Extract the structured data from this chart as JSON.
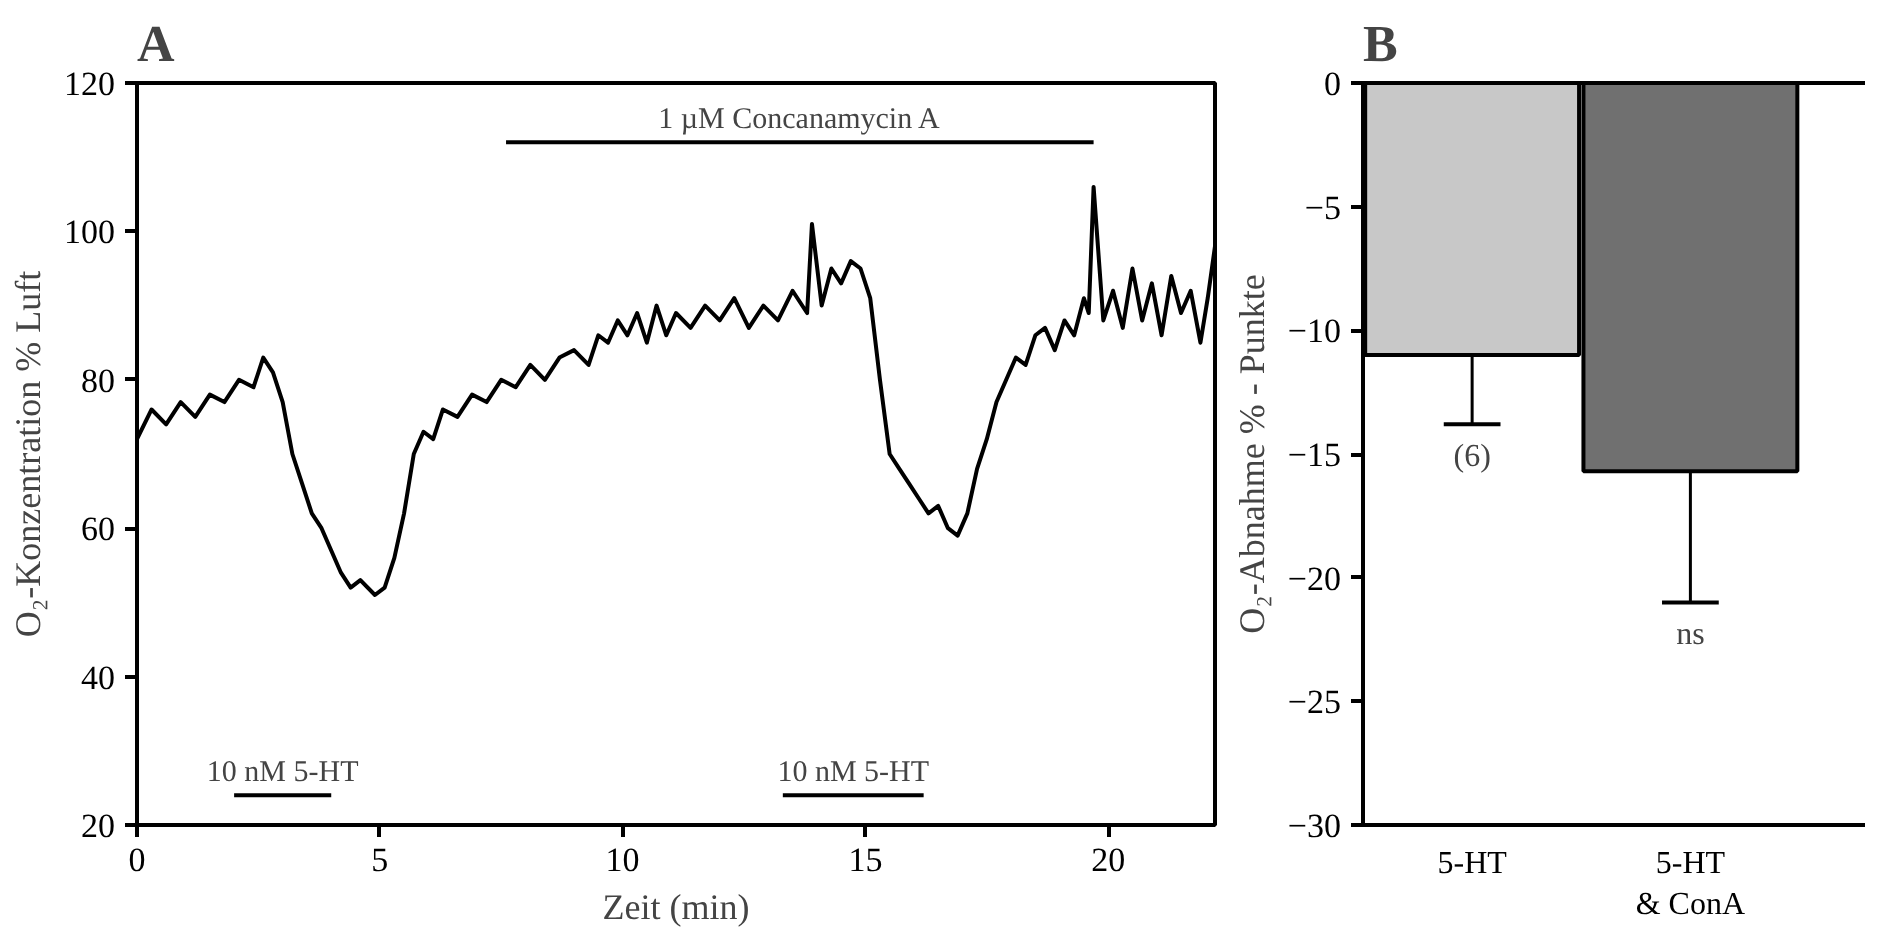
{
  "chart_data": [
    {
      "type": "line",
      "title": "A",
      "xlabel": "Zeit (min)",
      "ylabel": "O₂-Konzentration % Luft",
      "x": [
        0,
        0.3,
        0.6,
        0.9,
        1.2,
        1.5,
        1.8,
        2.1,
        2.4,
        2.6,
        2.8,
        3.0,
        3.2,
        3.4,
        3.6,
        3.8,
        4.0,
        4.2,
        4.4,
        4.6,
        4.9,
        5.1,
        5.3,
        5.5,
        5.7,
        5.9,
        6.1,
        6.3,
        6.6,
        6.9,
        7.2,
        7.5,
        7.8,
        8.1,
        8.4,
        8.7,
        9.0,
        9.3,
        9.5,
        9.7,
        9.9,
        10.1,
        10.3,
        10.5,
        10.7,
        10.9,
        11.1,
        11.4,
        11.7,
        12.0,
        12.3,
        12.6,
        12.9,
        13.2,
        13.5,
        13.8,
        13.9,
        14.1,
        14.3,
        14.5,
        14.7,
        14.9,
        15.1,
        15.3,
        15.5,
        15.7,
        15.9,
        16.1,
        16.3,
        16.5,
        16.7,
        16.9,
        17.1,
        17.3,
        17.5,
        17.7,
        17.9,
        18.1,
        18.3,
        18.5,
        18.7,
        18.9,
        19.1,
        19.3,
        19.5,
        19.6,
        19.7,
        19.9,
        20.1,
        20.3,
        20.5,
        20.7,
        20.9,
        21.1,
        21.3,
        21.5,
        21.7,
        21.9,
        22.05,
        22.2
      ],
      "series": [
        {
          "color": "#000000",
          "values": [
            72,
            76,
            74,
            77,
            75,
            78,
            77,
            80,
            79,
            83,
            81,
            77,
            70,
            66,
            62,
            60,
            57,
            54,
            52,
            53,
            51,
            52,
            56,
            62,
            70,
            73,
            72,
            76,
            75,
            78,
            77,
            80,
            79,
            82,
            80,
            83,
            84,
            82,
            86,
            85,
            88,
            86,
            89,
            85,
            90,
            86,
            89,
            87,
            90,
            88,
            91,
            87,
            90,
            88,
            92,
            89,
            101,
            90,
            95,
            93,
            96,
            95,
            91,
            80,
            70,
            68,
            66,
            64,
            62,
            63,
            60,
            59,
            62,
            68,
            72,
            77,
            80,
            83,
            82,
            86,
            87,
            84,
            88,
            86,
            91,
            89,
            106,
            88,
            92,
            87,
            95,
            88,
            93,
            86,
            94,
            89,
            92,
            85,
            91,
            98
          ]
        },
        {
          "color": "#000000",
          "x": [
            7.6,
            19.7
          ],
          "values": [
            112,
            112
          ]
        },
        {
          "color": "#000000",
          "x": [
            2.0,
            4.0
          ],
          "values": [
            24,
            24
          ]
        },
        {
          "color": "#000000",
          "x": [
            13.3,
            16.2
          ],
          "values": [
            24,
            24
          ]
        }
      ],
      "xlim": [
        0,
        22.2
      ],
      "ylim": [
        20,
        120
      ],
      "xticks": [
        0,
        5,
        10,
        15,
        20
      ],
      "yticks": [
        20,
        40,
        60,
        80,
        100,
        120
      ],
      "grid": false,
      "line_style": "solid",
      "marker": "none",
      "annotations": [
        {
          "text": "1 µM Concanamycin A",
          "x": 13.65,
          "y": 112
        },
        {
          "text": "10 nM 5-HT",
          "x": 3.0,
          "y": 24
        },
        {
          "text": "10 nM 5-HT",
          "x": 14.75,
          "y": 24
        }
      ]
    },
    {
      "type": "bar",
      "title": "B",
      "ylabel": "O₂-Abnahme % - Punkte",
      "categories": [
        "5-HT",
        "5-HT\n& ConA"
      ],
      "values": [
        -11,
        -15.7
      ],
      "colors": [
        "#c8c8c8",
        "#707070"
      ],
      "errors": [
        [
          -13.8,
          -11
        ],
        [
          -21,
          -15.7
        ]
      ],
      "ylim": [
        -30,
        0
      ],
      "yticks": [
        -30,
        -25,
        -20,
        -15,
        -10,
        -5,
        0
      ],
      "grid": false,
      "annotations": [
        "(6)",
        "ns"
      ]
    }
  ]
}
